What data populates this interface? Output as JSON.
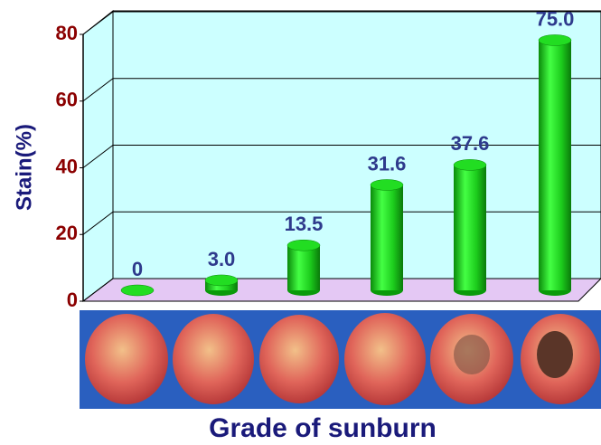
{
  "chart_data": {
    "type": "bar",
    "y_label": "Stain(%)",
    "x_label": "Grade of sunburn",
    "categories": [
      null,
      null,
      null,
      null,
      null,
      null
    ],
    "values": [
      0,
      3.0,
      13.5,
      31.6,
      37.6,
      75.0
    ],
    "value_labels": [
      "0",
      "3.0",
      "13.5",
      "31.6",
      "37.6",
      "75.0"
    ],
    "color": "#22dd22",
    "ylim": [
      0,
      80
    ],
    "yticks": [
      0,
      20,
      40,
      60,
      80
    ],
    "grid": true
  }
}
